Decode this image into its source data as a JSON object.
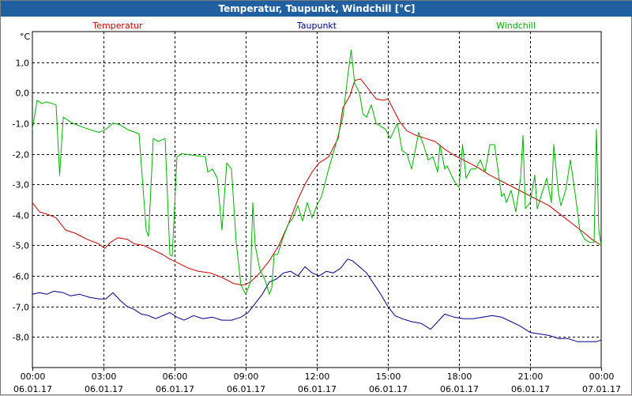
{
  "window": {
    "title": "Temperatur, Taupunkt, Windchill [°C]"
  },
  "chart_data": {
    "type": "line",
    "title": "Temperatur, Taupunkt, Windchill [°C]",
    "ylabel": "°C",
    "xlabel": "",
    "ylim": [
      -9.0,
      2.0
    ],
    "xlim": [
      0,
      24
    ],
    "grid": true,
    "y_ticks": [
      {
        "value": 1.0,
        "label": "1,0"
      },
      {
        "value": 0.0,
        "label": "0,0"
      },
      {
        "value": -1.0,
        "label": "-1,0"
      },
      {
        "value": -2.0,
        "label": "-2,0"
      },
      {
        "value": -3.0,
        "label": "-3,0"
      },
      {
        "value": -4.0,
        "label": "-4,0"
      },
      {
        "value": -5.0,
        "label": "-5,0"
      },
      {
        "value": -6.0,
        "label": "-6,0"
      },
      {
        "value": -7.0,
        "label": "-7,0"
      },
      {
        "value": -8.0,
        "label": "-8,0"
      }
    ],
    "x_ticks": [
      {
        "value": 0,
        "time": "00:00",
        "date": "06.01.17"
      },
      {
        "value": 3,
        "time": "03:00",
        "date": "06.01.17"
      },
      {
        "value": 6,
        "time": "06:00",
        "date": "06.01.17"
      },
      {
        "value": 9,
        "time": "09:00",
        "date": "06.01.17"
      },
      {
        "value": 12,
        "time": "12:00",
        "date": "06.01.17"
      },
      {
        "value": 15,
        "time": "15:00",
        "date": "06.01.17"
      },
      {
        "value": 18,
        "time": "18:00",
        "date": "06.01.17"
      },
      {
        "value": 21,
        "time": "21:00",
        "date": "06.01.17"
      },
      {
        "value": 24,
        "time": "00:00",
        "date": "07.01.17"
      }
    ],
    "series": [
      {
        "name": "Temperatur",
        "color": "#cc0000",
        "legend_position": "top-left",
        "points": [
          [
            0,
            -3.6
          ],
          [
            0.3,
            -3.9
          ],
          [
            0.7,
            -4.0
          ],
          [
            1.0,
            -4.1
          ],
          [
            1.4,
            -4.5
          ],
          [
            1.8,
            -4.6
          ],
          [
            2.3,
            -4.8
          ],
          [
            2.8,
            -4.95
          ],
          [
            3.05,
            -5.1
          ],
          [
            3.3,
            -4.9
          ],
          [
            3.6,
            -4.75
          ],
          [
            4.0,
            -4.8
          ],
          [
            4.3,
            -4.95
          ],
          [
            4.7,
            -5.0
          ],
          [
            5.1,
            -5.15
          ],
          [
            5.5,
            -5.3
          ],
          [
            5.8,
            -5.45
          ],
          [
            6.2,
            -5.6
          ],
          [
            6.6,
            -5.75
          ],
          [
            7.0,
            -5.85
          ],
          [
            7.5,
            -5.9
          ],
          [
            8.0,
            -6.05
          ],
          [
            8.5,
            -6.25
          ],
          [
            8.9,
            -6.3
          ],
          [
            9.2,
            -6.2
          ],
          [
            9.6,
            -5.9
          ],
          [
            10.0,
            -5.5
          ],
          [
            10.4,
            -5.0
          ],
          [
            10.8,
            -4.3
          ],
          [
            11.2,
            -3.5
          ],
          [
            11.5,
            -3.0
          ],
          [
            11.8,
            -2.6
          ],
          [
            12.1,
            -2.3
          ],
          [
            12.5,
            -2.1
          ],
          [
            12.9,
            -1.5
          ],
          [
            13.1,
            -0.5
          ],
          [
            13.4,
            -0.1
          ],
          [
            13.6,
            0.4
          ],
          [
            13.85,
            0.45
          ],
          [
            14.1,
            0.2
          ],
          [
            14.3,
            0.0
          ],
          [
            14.5,
            -0.2
          ],
          [
            14.8,
            -0.25
          ],
          [
            15.0,
            -0.2
          ],
          [
            15.2,
            -0.5
          ],
          [
            15.5,
            -0.95
          ],
          [
            15.8,
            -1.25
          ],
          [
            16.2,
            -1.4
          ],
          [
            16.6,
            -1.5
          ],
          [
            17.0,
            -1.6
          ],
          [
            17.4,
            -1.85
          ],
          [
            17.8,
            -2.05
          ],
          [
            18.3,
            -2.25
          ],
          [
            18.8,
            -2.45
          ],
          [
            19.3,
            -2.7
          ],
          [
            19.8,
            -2.9
          ],
          [
            20.3,
            -3.1
          ],
          [
            20.8,
            -3.3
          ],
          [
            21.3,
            -3.5
          ],
          [
            21.8,
            -3.7
          ],
          [
            22.3,
            -4.0
          ],
          [
            22.8,
            -4.3
          ],
          [
            23.3,
            -4.6
          ],
          [
            23.6,
            -4.8
          ],
          [
            24.0,
            -5.0
          ]
        ]
      },
      {
        "name": "Taupunkt",
        "color": "#00008b",
        "legend_position": "top-center",
        "points": [
          [
            0,
            -6.6
          ],
          [
            0.3,
            -6.55
          ],
          [
            0.6,
            -6.6
          ],
          [
            0.9,
            -6.5
          ],
          [
            1.3,
            -6.55
          ],
          [
            1.6,
            -6.65
          ],
          [
            2.0,
            -6.6
          ],
          [
            2.4,
            -6.7
          ],
          [
            2.8,
            -6.75
          ],
          [
            3.1,
            -6.75
          ],
          [
            3.4,
            -6.55
          ],
          [
            3.7,
            -6.8
          ],
          [
            4.0,
            -7.0
          ],
          [
            4.3,
            -7.1
          ],
          [
            4.6,
            -7.25
          ],
          [
            4.9,
            -7.3
          ],
          [
            5.2,
            -7.4
          ],
          [
            5.5,
            -7.3
          ],
          [
            5.8,
            -7.2
          ],
          [
            6.1,
            -7.35
          ],
          [
            6.4,
            -7.45
          ],
          [
            6.8,
            -7.3
          ],
          [
            7.2,
            -7.4
          ],
          [
            7.6,
            -7.35
          ],
          [
            8.0,
            -7.45
          ],
          [
            8.4,
            -7.45
          ],
          [
            8.8,
            -7.35
          ],
          [
            9.1,
            -7.2
          ],
          [
            9.4,
            -6.9
          ],
          [
            9.7,
            -6.6
          ],
          [
            10.0,
            -6.2
          ],
          [
            10.3,
            -6.1
          ],
          [
            10.6,
            -5.9
          ],
          [
            10.9,
            -5.85
          ],
          [
            11.2,
            -6.0
          ],
          [
            11.5,
            -5.7
          ],
          [
            11.8,
            -5.9
          ],
          [
            12.1,
            -6.0
          ],
          [
            12.4,
            -5.85
          ],
          [
            12.7,
            -5.9
          ],
          [
            13.0,
            -5.75
          ],
          [
            13.3,
            -5.45
          ],
          [
            13.5,
            -5.5
          ],
          [
            13.8,
            -5.7
          ],
          [
            14.1,
            -5.9
          ],
          [
            14.4,
            -6.25
          ],
          [
            14.7,
            -6.6
          ],
          [
            15.0,
            -7.0
          ],
          [
            15.3,
            -7.3
          ],
          [
            15.6,
            -7.4
          ],
          [
            16.0,
            -7.5
          ],
          [
            16.4,
            -7.55
          ],
          [
            16.8,
            -7.75
          ],
          [
            17.1,
            -7.5
          ],
          [
            17.4,
            -7.25
          ],
          [
            17.8,
            -7.35
          ],
          [
            18.2,
            -7.4
          ],
          [
            18.6,
            -7.4
          ],
          [
            19.0,
            -7.35
          ],
          [
            19.4,
            -7.3
          ],
          [
            19.8,
            -7.35
          ],
          [
            20.2,
            -7.5
          ],
          [
            20.6,
            -7.65
          ],
          [
            21.0,
            -7.85
          ],
          [
            21.4,
            -7.9
          ],
          [
            21.8,
            -7.95
          ],
          [
            22.2,
            -8.05
          ],
          [
            22.6,
            -8.05
          ],
          [
            23.0,
            -8.15
          ],
          [
            23.4,
            -8.15
          ],
          [
            23.8,
            -8.15
          ],
          [
            24.0,
            -8.1
          ]
        ]
      },
      {
        "name": "Windchill",
        "color": "#00b400",
        "legend_position": "top-right",
        "points": [
          [
            0,
            -1.2
          ],
          [
            0.2,
            -0.25
          ],
          [
            0.4,
            -0.35
          ],
          [
            0.6,
            -0.3
          ],
          [
            1.0,
            -0.4
          ],
          [
            1.15,
            -2.7
          ],
          [
            1.3,
            -0.8
          ],
          [
            1.7,
            -1.0
          ],
          [
            2.2,
            -1.15
          ],
          [
            2.8,
            -1.3
          ],
          [
            3.1,
            -1.2
          ],
          [
            3.4,
            -1.0
          ],
          [
            3.7,
            -1.05
          ],
          [
            4.0,
            -1.2
          ],
          [
            4.5,
            -1.35
          ],
          [
            4.8,
            -4.5
          ],
          [
            4.9,
            -4.7
          ],
          [
            5.1,
            -1.5
          ],
          [
            5.3,
            -1.6
          ],
          [
            5.6,
            -1.5
          ],
          [
            5.8,
            -5.3
          ],
          [
            5.9,
            -5.35
          ],
          [
            6.1,
            -2.1
          ],
          [
            6.3,
            -2.0
          ],
          [
            6.8,
            -2.05
          ],
          [
            7.3,
            -2.1
          ],
          [
            7.4,
            -2.6
          ],
          [
            7.6,
            -2.5
          ],
          [
            7.8,
            -2.8
          ],
          [
            8.0,
            -4.5
          ],
          [
            8.2,
            -2.3
          ],
          [
            8.4,
            -2.5
          ],
          [
            8.6,
            -4.9
          ],
          [
            8.8,
            -6.3
          ],
          [
            9.0,
            -6.6
          ],
          [
            9.2,
            -6.2
          ],
          [
            9.3,
            -3.6
          ],
          [
            9.4,
            -5.0
          ],
          [
            9.6,
            -5.8
          ],
          [
            9.8,
            -6.1
          ],
          [
            10.0,
            -6.6
          ],
          [
            10.1,
            -6.4
          ],
          [
            10.2,
            -5.3
          ],
          [
            10.35,
            -5.3
          ],
          [
            10.6,
            -4.7
          ],
          [
            10.8,
            -4.3
          ],
          [
            11.0,
            -4.1
          ],
          [
            11.2,
            -3.7
          ],
          [
            11.4,
            -4.2
          ],
          [
            11.6,
            -3.6
          ],
          [
            11.8,
            -4.1
          ],
          [
            12.0,
            -3.7
          ],
          [
            12.2,
            -3.4
          ],
          [
            12.5,
            -2.5
          ],
          [
            12.8,
            -1.7
          ],
          [
            13.1,
            -0.8
          ],
          [
            13.3,
            0.5
          ],
          [
            13.45,
            1.4
          ],
          [
            13.6,
            0.3
          ],
          [
            13.8,
            0.0
          ],
          [
            13.95,
            -0.7
          ],
          [
            14.1,
            -0.8
          ],
          [
            14.3,
            -0.4
          ],
          [
            14.5,
            -1.0
          ],
          [
            14.7,
            -1.1
          ],
          [
            14.9,
            -1.2
          ],
          [
            15.1,
            -1.5
          ],
          [
            15.4,
            -1.0
          ],
          [
            15.6,
            -1.9
          ],
          [
            15.8,
            -2.0
          ],
          [
            16.0,
            -2.5
          ],
          [
            16.3,
            -1.3
          ],
          [
            16.5,
            -1.7
          ],
          [
            16.7,
            -2.2
          ],
          [
            16.9,
            -2.1
          ],
          [
            17.1,
            -2.6
          ],
          [
            17.2,
            -1.7
          ],
          [
            17.4,
            -2.5
          ],
          [
            17.5,
            -2.4
          ],
          [
            17.8,
            -2.9
          ],
          [
            18.0,
            -3.1
          ],
          [
            18.15,
            -1.7
          ],
          [
            18.3,
            -2.8
          ],
          [
            18.5,
            -2.5
          ],
          [
            18.7,
            -2.5
          ],
          [
            18.9,
            -2.2
          ],
          [
            19.1,
            -2.6
          ],
          [
            19.3,
            -1.7
          ],
          [
            19.5,
            -1.7
          ],
          [
            19.8,
            -3.4
          ],
          [
            19.9,
            -3.3
          ],
          [
            20.0,
            -3.6
          ],
          [
            20.2,
            -3.2
          ],
          [
            20.4,
            -3.9
          ],
          [
            20.6,
            -2.8
          ],
          [
            20.7,
            -1.4
          ],
          [
            20.8,
            -3.8
          ],
          [
            21.0,
            -3.6
          ],
          [
            21.2,
            -2.7
          ],
          [
            21.3,
            -3.8
          ],
          [
            21.5,
            -3.3
          ],
          [
            21.7,
            -2.8
          ],
          [
            21.9,
            -3.6
          ],
          [
            22.0,
            -1.7
          ],
          [
            22.2,
            -3.3
          ],
          [
            22.3,
            -3.7
          ],
          [
            22.5,
            -3.2
          ],
          [
            22.7,
            -2.2
          ],
          [
            22.9,
            -3.3
          ],
          [
            23.1,
            -4.5
          ],
          [
            23.3,
            -4.8
          ],
          [
            23.5,
            -4.9
          ],
          [
            23.7,
            -4.9
          ],
          [
            23.8,
            -1.2
          ],
          [
            23.9,
            -4.5
          ],
          [
            24.0,
            -5.0
          ]
        ]
      }
    ]
  }
}
